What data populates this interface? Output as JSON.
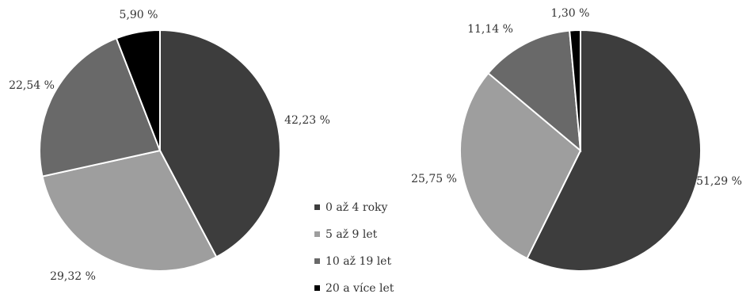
{
  "chart_data": [
    {
      "type": "pie",
      "title": "",
      "categories": [
        "0 až 4 roky",
        "5 až 9 let",
        "10 až 19 let",
        "20 a více let"
      ],
      "values": [
        42.23,
        29.32,
        22.54,
        5.9
      ],
      "labels": [
        "42,23 %",
        "29,32 %",
        "22,54 %",
        "5,90 %"
      ],
      "colors": [
        "#3d3d3d",
        "#9e9e9e",
        "#696969",
        "#000000"
      ],
      "start_angle_deg": 0,
      "direction": "clockwise",
      "legend": "shared-between-charts"
    },
    {
      "type": "pie",
      "title": "",
      "categories": [
        "0 až 4 roky",
        "5 až 9 let",
        "10 až 19 let",
        "20 a více let"
      ],
      "values": [
        51.29,
        25.75,
        11.14,
        1.3
      ],
      "labels": [
        "51,29 %",
        "25,75 %",
        "11,14 %",
        "1,30 %"
      ],
      "colors": [
        "#3d3d3d",
        "#9e9e9e",
        "#696969",
        "#000000"
      ],
      "start_angle_deg": 0,
      "direction": "clockwise",
      "legend": "shared-between-charts"
    }
  ],
  "legend": {
    "items": [
      {
        "label": "0 až 4 roky",
        "color": "#3d3d3d"
      },
      {
        "label": "5 až 9 let",
        "color": "#9e9e9e"
      },
      {
        "label": "10 až 19 let",
        "color": "#696969"
      },
      {
        "label": "20 a více let",
        "color": "#000000"
      }
    ]
  }
}
